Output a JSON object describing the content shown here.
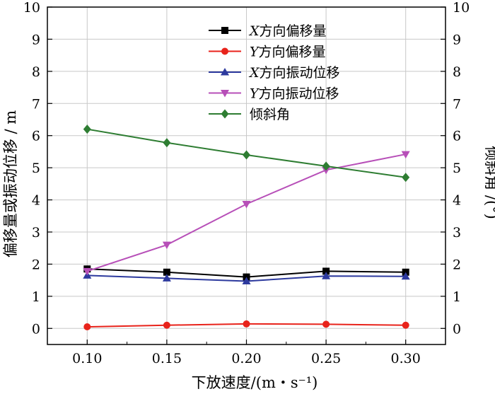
{
  "chart_data": {
    "type": "line",
    "x": [
      0.1,
      0.15,
      0.2,
      0.25,
      0.3
    ],
    "x_tick_labels": [
      "0.10",
      "0.15",
      "0.20",
      "0.25",
      "0.30"
    ],
    "xlim": [
      0.075,
      0.325
    ],
    "xlabel": "下放速度/(m・s⁻¹)",
    "ylabel_left": "偏移量或振动位移 / m",
    "ylabel_right": "倾斜角 /(°)",
    "ylim_left": [
      -0.5,
      10
    ],
    "ylim_right": [
      -0.5,
      10
    ],
    "y_ticks": [
      0,
      1,
      2,
      3,
      4,
      5,
      6,
      7,
      8,
      9,
      10
    ],
    "grid": true,
    "legend_position": "top-center",
    "series": [
      {
        "name_prefix": "X",
        "name": "方向偏移量",
        "color": "#000000",
        "marker": "square",
        "axis": "left",
        "values": [
          1.85,
          1.75,
          1.6,
          1.78,
          1.75
        ]
      },
      {
        "name_prefix": "Y",
        "name": "方向偏移量",
        "color": "#e8231b",
        "marker": "circle",
        "axis": "left",
        "values": [
          0.05,
          0.1,
          0.14,
          0.13,
          0.1
        ]
      },
      {
        "name_prefix": "X",
        "name": "方向振动位移",
        "color": "#2d3a9e",
        "marker": "triangle-up",
        "axis": "left",
        "values": [
          1.65,
          1.56,
          1.47,
          1.63,
          1.62
        ]
      },
      {
        "name_prefix": "Y",
        "name": "方向振动位移",
        "color": "#b74fb8",
        "marker": "triangle-down",
        "axis": "left",
        "values": [
          1.78,
          2.6,
          3.87,
          4.93,
          5.42
        ]
      },
      {
        "name_prefix": "",
        "name": "倾斜角",
        "color": "#2e7d32",
        "marker": "diamond",
        "axis": "right",
        "values": [
          6.2,
          5.78,
          5.4,
          5.05,
          4.7
        ]
      }
    ]
  }
}
